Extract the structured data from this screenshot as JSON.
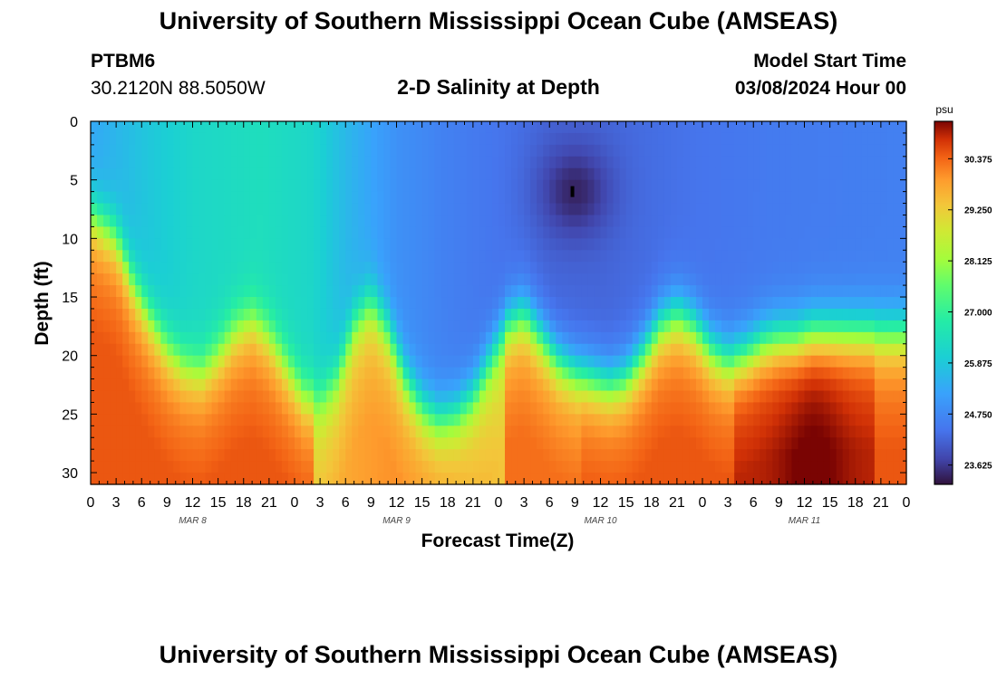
{
  "header": {
    "title": "University of Southern Mississippi Ocean Cube (AMSEAS)",
    "station": "PTBM6",
    "coordinates": "30.2120N  88.5050W",
    "subtitle": "2-D Salinity at Depth",
    "model_start_label": "Model Start Time",
    "model_start_value": "03/08/2024 Hour 00"
  },
  "footer": {
    "title": "University of Southern Mississippi Ocean Cube (AMSEAS)"
  },
  "chart_data": {
    "type": "heatmap",
    "title": "2-D Salinity at Depth",
    "xlabel": "Forecast Time(Z)",
    "ylabel": "Depth (ft)",
    "x_range_hours": [
      0,
      96
    ],
    "ylim": [
      0,
      31
    ],
    "y_inverted": true,
    "x_ticks": [
      "0",
      "3",
      "6",
      "9",
      "12",
      "15",
      "18",
      "21",
      "0",
      "3",
      "6",
      "9",
      "12",
      "15",
      "18",
      "21",
      "0",
      "3",
      "6",
      "9",
      "12",
      "15",
      "18",
      "21",
      "0",
      "3",
      "6",
      "9",
      "12",
      "15",
      "18",
      "21",
      "0"
    ],
    "day_labels": [
      {
        "label": "MAR 8",
        "hour": 12
      },
      {
        "label": "MAR 9",
        "hour": 36
      },
      {
        "label": "MAR 10",
        "hour": 60
      },
      {
        "label": "MAR 11",
        "hour": 84
      }
    ],
    "y_ticks": [
      0,
      5,
      10,
      15,
      20,
      25,
      30
    ],
    "colorbar": {
      "unit": "psu",
      "ticks": [
        "30.375",
        "29.250",
        "28.125",
        "27.000",
        "25.875",
        "24.750",
        "23.625"
      ],
      "min": 23.2,
      "max": 31.2
    },
    "halocline_depth_ft": {
      "hours": [
        0,
        3,
        5,
        7,
        9,
        11,
        13,
        15,
        17,
        19,
        21,
        23,
        25,
        27,
        29,
        31,
        33,
        35,
        37,
        39,
        41,
        43,
        45,
        47,
        49,
        51,
        53,
        55,
        57,
        59,
        61,
        63,
        65,
        67,
        69,
        71,
        73,
        75,
        77,
        79,
        81,
        83,
        85,
        87,
        89,
        91,
        93,
        96
      ],
      "values": [
        8,
        10,
        14,
        17,
        19.5,
        21,
        21.5,
        20,
        18,
        17,
        18.5,
        21,
        23.5,
        24,
        22,
        17.5,
        15.5,
        18,
        22,
        24.5,
        25.5,
        25,
        23.5,
        20.5,
        17.5,
        16.5,
        18.5,
        20.5,
        21.5,
        22,
        22.5,
        22,
        20,
        17.5,
        16.5,
        17.5,
        19.5,
        20.5,
        20,
        19,
        18.5,
        18.5,
        18,
        18,
        18,
        18,
        18,
        18
      ]
    },
    "surface_minimum": {
      "salinity": 23.4,
      "hour": 57,
      "depth_ft": 6
    },
    "marker": {
      "hour": 56.7,
      "depth_ft": 6
    }
  }
}
